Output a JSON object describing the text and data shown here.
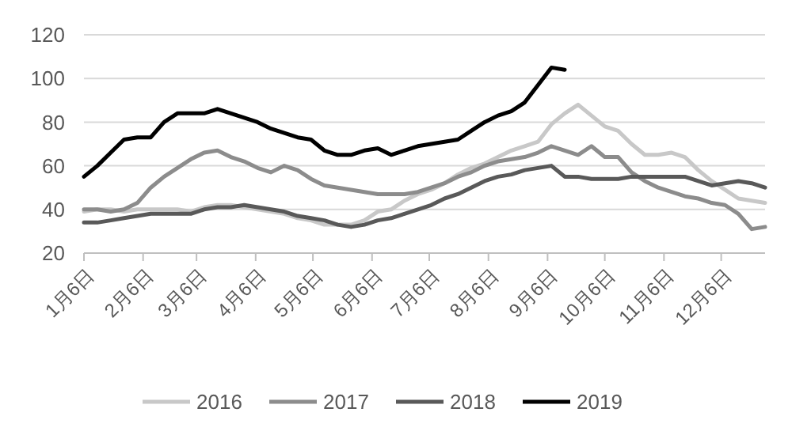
{
  "chart_data": {
    "type": "line",
    "x": [
      "--01-06",
      "--01-13",
      "--01-20",
      "--01-27",
      "--02-03",
      "--02-10",
      "--02-17",
      "--02-24",
      "--03-03",
      "--03-10",
      "--03-17",
      "--03-24",
      "--03-31",
      "--04-07",
      "--04-14",
      "--04-21",
      "--04-28",
      "--05-05",
      "--05-12",
      "--05-19",
      "--05-26",
      "--06-02",
      "--06-09",
      "--06-16",
      "--06-23",
      "--06-30",
      "--07-07",
      "--07-14",
      "--07-21",
      "--07-28",
      "--08-04",
      "--08-11",
      "--08-18",
      "--08-25",
      "--09-01",
      "--09-08",
      "--09-15",
      "--09-22",
      "--09-29",
      "--10-06",
      "--10-13",
      "--10-20",
      "--10-27",
      "--11-03",
      "--11-10",
      "--11-17",
      "--11-24",
      "--12-01",
      "--12-08",
      "--12-15",
      "--12-22",
      "--12-29"
    ],
    "xlim": [
      "--01-06",
      "--12-29"
    ],
    "xticks": [
      {
        "value": "--01-06",
        "label": "1月6日"
      },
      {
        "value": "--02-06",
        "label": "2月6日"
      },
      {
        "value": "--03-06",
        "label": "3月6日"
      },
      {
        "value": "--04-06",
        "label": "4月6日"
      },
      {
        "value": "--05-06",
        "label": "5月6日"
      },
      {
        "value": "--06-06",
        "label": "6月6日"
      },
      {
        "value": "--07-06",
        "label": "7月6日"
      },
      {
        "value": "--08-06",
        "label": "8月6日"
      },
      {
        "value": "--09-06",
        "label": "9月6日"
      },
      {
        "value": "--10-06",
        "label": "10月6日"
      },
      {
        "value": "--11-06",
        "label": "11月6日"
      },
      {
        "value": "--12-06",
        "label": "12月6日"
      }
    ],
    "series": [
      {
        "name": "2016",
        "color": "#c8c8c8",
        "values": [
          39,
          40,
          40,
          39,
          40,
          40,
          40,
          40,
          39,
          41,
          42,
          42,
          41,
          40,
          39,
          38,
          36,
          35,
          33,
          33,
          33,
          35,
          39,
          40,
          44,
          47,
          49,
          52,
          56,
          59,
          61,
          64,
          67,
          69,
          71,
          79,
          84,
          88,
          83,
          78,
          76,
          70,
          65,
          65,
          66,
          64,
          58,
          53,
          49,
          45,
          44,
          43
        ]
      },
      {
        "name": "2017",
        "color": "#8c8c8c",
        "values": [
          40,
          40,
          39,
          40,
          43,
          50,
          55,
          59,
          63,
          66,
          67,
          64,
          62,
          59,
          57,
          60,
          58,
          54,
          51,
          50,
          49,
          48,
          47,
          47,
          47,
          48,
          50,
          52,
          55,
          57,
          60,
          62,
          63,
          64,
          66,
          69,
          67,
          65,
          69,
          64,
          64,
          57,
          53,
          50,
          48,
          46,
          45,
          43,
          42,
          38,
          31,
          32
        ]
      },
      {
        "name": "2018",
        "color": "#595959",
        "values": [
          34,
          34,
          35,
          36,
          37,
          38,
          38,
          38,
          38,
          40,
          41,
          41,
          42,
          41,
          40,
          39,
          37,
          36,
          35,
          33,
          32,
          33,
          35,
          36,
          38,
          40,
          42,
          45,
          47,
          50,
          53,
          55,
          56,
          58,
          59,
          60,
          55,
          55,
          54,
          54,
          54,
          55,
          55,
          55,
          55,
          55,
          53,
          51,
          52,
          53,
          52,
          50
        ]
      },
      {
        "name": "2019",
        "color": "#000000",
        "x": [
          "--01-06",
          "--01-13",
          "--01-20",
          "--01-27",
          "--02-03",
          "--02-10",
          "--02-17",
          "--02-24",
          "--03-03",
          "--03-10",
          "--03-17",
          "--03-24",
          "--03-31",
          "--04-07",
          "--04-14",
          "--04-21",
          "--04-28",
          "--05-05",
          "--05-12",
          "--05-19",
          "--05-26",
          "--06-02",
          "--06-09",
          "--06-16",
          "--06-23",
          "--06-30",
          "--07-07",
          "--07-14",
          "--07-21",
          "--07-28",
          "--08-04",
          "--08-11",
          "--08-18",
          "--08-25",
          "--09-01",
          "--09-08",
          "--09-15"
        ],
        "values": [
          55,
          60,
          66,
          72,
          73,
          73,
          80,
          84,
          84,
          84,
          86,
          84,
          82,
          80,
          77,
          75,
          73,
          72,
          67,
          65,
          65,
          67,
          68,
          65,
          67,
          69,
          70,
          71,
          72,
          76,
          80,
          83,
          85,
          89,
          97,
          105,
          104
        ]
      }
    ],
    "ylim": [
      20,
      120
    ],
    "yticks": [
      20,
      40,
      60,
      80,
      100,
      120
    ],
    "grid": "y",
    "legend": "bottom",
    "marker": "none",
    "line_style": "solid"
  }
}
